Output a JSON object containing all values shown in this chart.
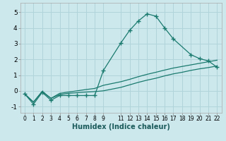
{
  "xlabel": "Humidex (Indice chaleur)",
  "ylabel": "",
  "bg_color": "#cce8ed",
  "grid_color": "#b0d4d9",
  "line_color": "#1a7a6e",
  "xlim": [
    -0.5,
    22.5
  ],
  "ylim": [
    -1.4,
    5.6
  ],
  "xticks": [
    0,
    1,
    2,
    3,
    4,
    5,
    6,
    7,
    8,
    9,
    11,
    12,
    13,
    14,
    15,
    16,
    17,
    18,
    19,
    20,
    21,
    22
  ],
  "yticks": [
    -1,
    0,
    1,
    2,
    3,
    4,
    5
  ],
  "series": [
    {
      "x": [
        0,
        1,
        2,
        3,
        4,
        5,
        6,
        7,
        8,
        9,
        11,
        12,
        13,
        14,
        15,
        16,
        17,
        19,
        20,
        21,
        22
      ],
      "y": [
        -0.2,
        -0.85,
        -0.1,
        -0.6,
        -0.3,
        -0.3,
        -0.3,
        -0.3,
        -0.3,
        1.3,
        3.05,
        3.85,
        4.45,
        4.9,
        4.75,
        4.0,
        3.3,
        2.3,
        2.05,
        1.9,
        1.5
      ],
      "marker": "+",
      "markersize": 4
    },
    {
      "x": [
        0,
        1,
        2,
        3,
        4,
        5,
        6,
        7,
        8,
        9,
        11,
        12,
        13,
        14,
        15,
        16,
        17,
        18,
        19,
        20,
        21,
        22
      ],
      "y": [
        -0.2,
        -0.72,
        -0.04,
        -0.48,
        -0.16,
        -0.08,
        0.0,
        0.08,
        0.15,
        0.35,
        0.58,
        0.73,
        0.9,
        1.05,
        1.18,
        1.32,
        1.45,
        1.55,
        1.65,
        1.75,
        1.85,
        1.95
      ],
      "marker": null
    },
    {
      "x": [
        0,
        1,
        2,
        3,
        4,
        5,
        6,
        7,
        8,
        9,
        11,
        12,
        13,
        14,
        15,
        16,
        17,
        18,
        19,
        20,
        21,
        22
      ],
      "y": [
        -0.2,
        -0.72,
        -0.04,
        -0.48,
        -0.24,
        -0.16,
        -0.12,
        -0.08,
        -0.05,
        0.0,
        0.22,
        0.38,
        0.54,
        0.68,
        0.8,
        0.95,
        1.08,
        1.18,
        1.3,
        1.4,
        1.48,
        1.58
      ],
      "marker": null
    }
  ]
}
